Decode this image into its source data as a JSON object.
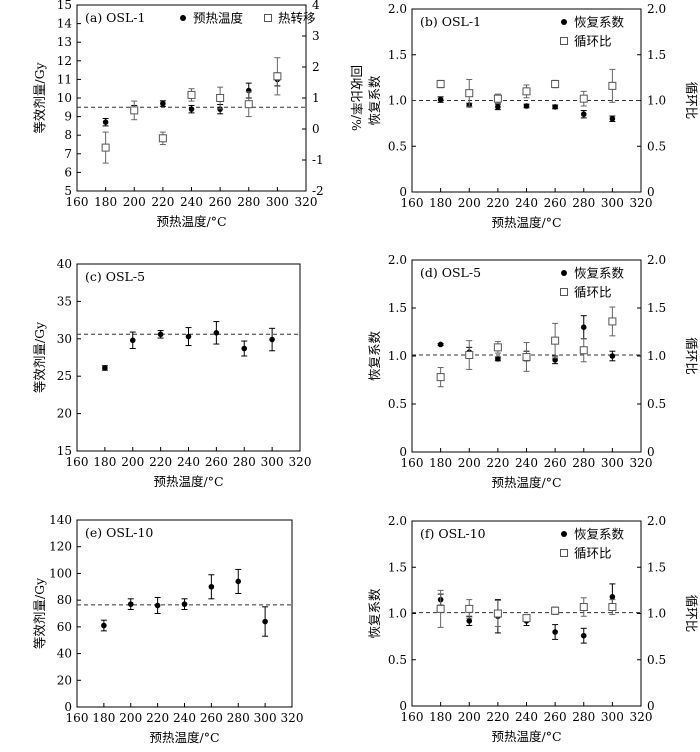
{
  "colors": {
    "dot": "#000000",
    "square_stroke": "#555555",
    "square_fill": "#ffffff",
    "axis": "#000000"
  },
  "chart_data": [
    {
      "id": "a",
      "type": "scatter",
      "label": "(a) OSL-1",
      "xlabel": "预热温度/°C",
      "xlim": [
        160,
        320
      ],
      "xticks": [
        160,
        180,
        200,
        220,
        240,
        260,
        280,
        300,
        320
      ],
      "ylabel": "等效剂量/Gy",
      "ylim": [
        5,
        15
      ],
      "yticks": [
        5,
        6,
        7,
        8,
        9,
        10,
        11,
        12,
        13,
        14,
        15
      ],
      "y2label": "回收比率/%",
      "y2lim": [
        -2,
        4
      ],
      "y2ticks": [
        -2,
        -1,
        0,
        1,
        2,
        3,
        4
      ],
      "refline": 9.5,
      "legend_position": "top",
      "legend": [
        {
          "marker": "dot",
          "label": "预热温度"
        },
        {
          "marker": "square",
          "label": "热转移"
        }
      ],
      "series": [
        {
          "marker": "dot",
          "axis": "left",
          "points": [
            {
              "x": 180,
              "y": 8.7,
              "err": 0.2
            },
            {
              "x": 200,
              "y": 9.4,
              "err": 0.2
            },
            {
              "x": 220,
              "y": 9.7,
              "err": 0.15
            },
            {
              "x": 240,
              "y": 9.4,
              "err": 0.2
            },
            {
              "x": 260,
              "y": 9.4,
              "err": 0.25
            },
            {
              "x": 280,
              "y": 10.4,
              "err": 0.4
            },
            {
              "x": 300,
              "y": 11.0,
              "err": 0.35
            }
          ]
        },
        {
          "marker": "square",
          "axis": "right",
          "points": [
            {
              "x": 180,
              "y": -0.6,
              "err": 0.5
            },
            {
              "x": 200,
              "y": 0.6,
              "err": 0.3
            },
            {
              "x": 220,
              "y": -0.3,
              "err": 0.2
            },
            {
              "x": 240,
              "y": 1.1,
              "err": 0.2
            },
            {
              "x": 260,
              "y": 1.0,
              "err": 0.35
            },
            {
              "x": 280,
              "y": 0.8,
              "err": 0.4
            },
            {
              "x": 300,
              "y": 1.7,
              "err": 0.6
            }
          ]
        }
      ]
    },
    {
      "id": "b",
      "type": "scatter",
      "label": "(b) OSL-1",
      "xlabel": "预热温度/°C",
      "xlim": [
        160,
        320
      ],
      "xticks": [
        160,
        180,
        200,
        220,
        240,
        260,
        280,
        300,
        320
      ],
      "ylabel": "恢复系数",
      "ylim": [
        0,
        2
      ],
      "yticks": [
        "0",
        "0.5",
        "1.0",
        "1.5",
        "2.0"
      ],
      "y2label": "循环比",
      "y2lim": [
        0,
        2
      ],
      "y2ticks": [
        "0",
        "0.5",
        "1.0",
        "1.5",
        "2.0"
      ],
      "refline": 1.0,
      "legend_position": "top-right",
      "legend": [
        {
          "marker": "dot",
          "label": "恢复系数"
        },
        {
          "marker": "square",
          "label": "循环比"
        }
      ],
      "series": [
        {
          "marker": "dot",
          "axis": "left",
          "points": [
            {
              "x": 180,
              "y": 1.01,
              "err": 0.03
            },
            {
              "x": 200,
              "y": 0.95,
              "err": 0.02
            },
            {
              "x": 220,
              "y": 0.93,
              "err": 0.03
            },
            {
              "x": 240,
              "y": 0.94,
              "err": 0.02
            },
            {
              "x": 260,
              "y": 0.93,
              "err": 0.02
            },
            {
              "x": 280,
              "y": 0.85,
              "err": 0.04
            },
            {
              "x": 300,
              "y": 0.8,
              "err": 0.03
            }
          ]
        },
        {
          "marker": "square",
          "axis": "right",
          "points": [
            {
              "x": 180,
              "y": 1.18,
              "err": 0.04
            },
            {
              "x": 200,
              "y": 1.08,
              "err": 0.15
            },
            {
              "x": 220,
              "y": 1.02,
              "err": 0.05
            },
            {
              "x": 240,
              "y": 1.1,
              "err": 0.07
            },
            {
              "x": 260,
              "y": 1.18,
              "err": 0.04
            },
            {
              "x": 280,
              "y": 1.02,
              "err": 0.08
            },
            {
              "x": 300,
              "y": 1.16,
              "err": 0.18
            }
          ]
        }
      ]
    },
    {
      "id": "c",
      "type": "scatter",
      "label": "(c) OSL-5",
      "xlabel": "预热温度/°C",
      "xlim": [
        160,
        320
      ],
      "xticks": [
        160,
        180,
        200,
        220,
        240,
        260,
        280,
        300,
        320
      ],
      "ylabel": "等效剂量/Gy",
      "ylim": [
        15,
        40
      ],
      "yticks": [
        15,
        20,
        25,
        30,
        35,
        40
      ],
      "refline": 30.6,
      "series": [
        {
          "marker": "dot",
          "axis": "left",
          "points": [
            {
              "x": 180,
              "y": 26.1,
              "err": 0.3
            },
            {
              "x": 200,
              "y": 29.8,
              "err": 1.1
            },
            {
              "x": 220,
              "y": 30.6,
              "err": 0.5
            },
            {
              "x": 240,
              "y": 30.3,
              "err": 1.2
            },
            {
              "x": 260,
              "y": 30.8,
              "err": 1.5
            },
            {
              "x": 280,
              "y": 28.7,
              "err": 1.0
            },
            {
              "x": 300,
              "y": 29.9,
              "err": 1.5
            }
          ]
        }
      ]
    },
    {
      "id": "d",
      "type": "scatter",
      "label": "(d) OSL-5",
      "xlabel": "预热温度/°C",
      "xlim": [
        160,
        320
      ],
      "xticks": [
        160,
        180,
        200,
        220,
        240,
        260,
        280,
        300,
        320
      ],
      "ylabel": "恢复系数",
      "ylim": [
        0,
        2
      ],
      "yticks": [
        "0",
        "0.5",
        "1.0",
        "1.5",
        "2.0"
      ],
      "y2label": "循环比",
      "y2lim": [
        0,
        2
      ],
      "y2ticks": [
        "0",
        "0.5",
        "1.0",
        "1.5",
        "2.0"
      ],
      "refline": 1.01,
      "legend_position": "top-right",
      "legend": [
        {
          "marker": "dot",
          "label": "恢复系数"
        },
        {
          "marker": "square",
          "label": "循环比"
        }
      ],
      "series": [
        {
          "marker": "dot",
          "axis": "left",
          "points": [
            {
              "x": 180,
              "y": 1.12,
              "err": 0.01
            },
            {
              "x": 200,
              "y": 1.04,
              "err": 0.05
            },
            {
              "x": 220,
              "y": 0.97,
              "err": 0.02
            },
            {
              "x": 240,
              "y": 1.0,
              "err": 0.05
            },
            {
              "x": 260,
              "y": 0.96,
              "err": 0.04
            },
            {
              "x": 280,
              "y": 1.3,
              "err": 0.12
            },
            {
              "x": 300,
              "y": 1.0,
              "err": 0.05
            }
          ]
        },
        {
          "marker": "square",
          "axis": "right",
          "points": [
            {
              "x": 180,
              "y": 0.78,
              "err": 0.1
            },
            {
              "x": 200,
              "y": 1.01,
              "err": 0.15
            },
            {
              "x": 220,
              "y": 1.09,
              "err": 0.06
            },
            {
              "x": 240,
              "y": 0.99,
              "err": 0.15
            },
            {
              "x": 260,
              "y": 1.16,
              "err": 0.18
            },
            {
              "x": 280,
              "y": 1.06,
              "err": 0.12
            },
            {
              "x": 300,
              "y": 1.36,
              "err": 0.15
            }
          ]
        }
      ]
    },
    {
      "id": "e",
      "type": "scatter",
      "label": "(e) OSL-10",
      "xlabel": "预热温度/°C",
      "xlim": [
        160,
        320
      ],
      "xticks": [
        160,
        180,
        200,
        220,
        240,
        260,
        280,
        300,
        320
      ],
      "ylabel": "等效剂量/Gy",
      "ylim": [
        0,
        140
      ],
      "yticks": [
        0,
        20,
        40,
        60,
        80,
        100,
        120,
        140
      ],
      "refline": 76.5,
      "series": [
        {
          "marker": "dot",
          "axis": "left",
          "points": [
            {
              "x": 180,
              "y": 61,
              "err": 4
            },
            {
              "x": 200,
              "y": 77,
              "err": 4
            },
            {
              "x": 220,
              "y": 76,
              "err": 6
            },
            {
              "x": 240,
              "y": 77,
              "err": 4
            },
            {
              "x": 260,
              "y": 90,
              "err": 9
            },
            {
              "x": 280,
              "y": 94,
              "err": 9
            },
            {
              "x": 300,
              "y": 64,
              "err": 11
            }
          ]
        }
      ]
    },
    {
      "id": "f",
      "type": "scatter",
      "label": "(f) OSL-10",
      "xlabel": "预热温度/°C",
      "xlim": [
        160,
        320
      ],
      "xticks": [
        160,
        180,
        200,
        220,
        240,
        260,
        280,
        300,
        320
      ],
      "ylabel": "恢复系数",
      "ylim": [
        0,
        2
      ],
      "yticks": [
        "0",
        "0.5",
        "1.0",
        "1.5",
        "2.0"
      ],
      "y2label": "循环比",
      "y2lim": [
        0,
        2
      ],
      "y2ticks": [
        "0",
        "0.5",
        "1.0",
        "1.5",
        "2.0"
      ],
      "refline": 1.01,
      "legend_position": "top-right",
      "legend": [
        {
          "marker": "dot",
          "label": "恢复系数"
        },
        {
          "marker": "square",
          "label": "循环比"
        }
      ],
      "series": [
        {
          "marker": "dot",
          "axis": "left",
          "points": [
            {
              "x": 180,
              "y": 1.15,
              "err": 0.06
            },
            {
              "x": 200,
              "y": 0.92,
              "err": 0.05
            },
            {
              "x": 220,
              "y": 0.97,
              "err": 0.18
            },
            {
              "x": 240,
              "y": 0.92,
              "err": 0.05
            },
            {
              "x": 260,
              "y": 0.8,
              "err": 0.08
            },
            {
              "x": 280,
              "y": 0.76,
              "err": 0.08
            },
            {
              "x": 300,
              "y": 1.18,
              "err": 0.14
            }
          ]
        },
        {
          "marker": "square",
          "axis": "right",
          "points": [
            {
              "x": 180,
              "y": 1.05,
              "err": 0.2
            },
            {
              "x": 200,
              "y": 1.05,
              "err": 0.1
            },
            {
              "x": 220,
              "y": 1.0,
              "err": 0.14
            },
            {
              "x": 240,
              "y": 0.95,
              "err": 0.03
            },
            {
              "x": 260,
              "y": 1.03,
              "err": 0.04
            },
            {
              "x": 280,
              "y": 1.07,
              "err": 0.1
            },
            {
              "x": 300,
              "y": 1.07,
              "err": 0.08
            }
          ]
        }
      ]
    }
  ]
}
